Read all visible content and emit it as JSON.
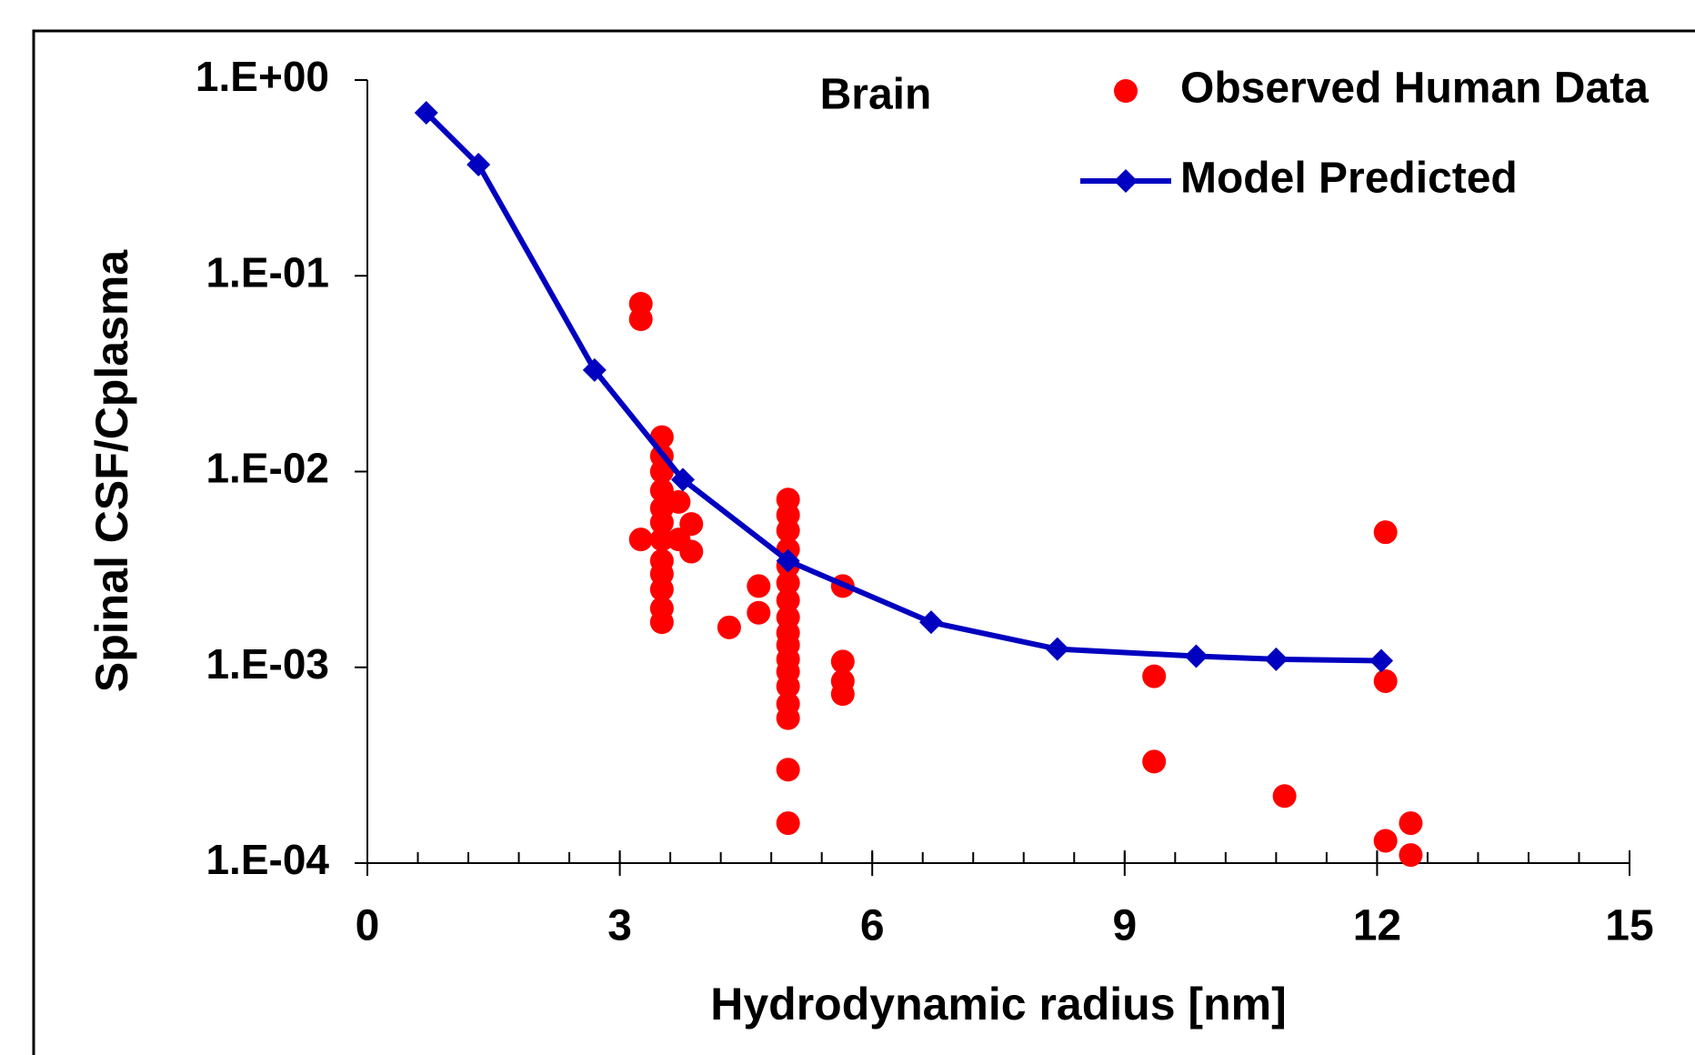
{
  "chart_data": {
    "type": "scatter",
    "title": "Brain",
    "xlabel": "Hydrodynamic  radius [nm]",
    "ylabel": "Spinal CSF/Cplasma",
    "xlim": [
      0,
      15
    ],
    "xticks": [
      0,
      3,
      6,
      9,
      12,
      15
    ],
    "ylim": [
      0.0001,
      1
    ],
    "yscale": "log",
    "yticks": [
      {
        "value": 1,
        "label": "1.E+00"
      },
      {
        "value": 0.1,
        "label": "1.E-01"
      },
      {
        "value": 0.01,
        "label": "1.E-02"
      },
      {
        "value": 0.001,
        "label": "1.E-03"
      },
      {
        "value": 0.0001,
        "label": "1.E-04"
      }
    ],
    "grid": false,
    "legend": "upper right",
    "series": [
      {
        "name": "Observed Human Data",
        "type": "scatter",
        "color": "#ff0000",
        "x": [
          3.25,
          3.25,
          3.25,
          3.5,
          3.5,
          3.5,
          3.5,
          3.5,
          3.5,
          3.5,
          3.5,
          3.5,
          3.5,
          3.5,
          3.5,
          3.7,
          3.7,
          3.85,
          3.85,
          4.3,
          4.65,
          4.65,
          5.0,
          5.0,
          5.0,
          5.0,
          5.0,
          5.0,
          5.0,
          5.0,
          5.0,
          5.0,
          5.0,
          5.0,
          5.0,
          5.0,
          5.0,
          5.0,
          5.0,
          5.65,
          5.65,
          5.65,
          5.65,
          9.35,
          9.35,
          10.9,
          12.1,
          12.1,
          12.1,
          12.4,
          12.4
        ],
        "y": [
          0.072,
          0.06,
          0.0045,
          0.015,
          0.012,
          0.01,
          0.008,
          0.0065,
          0.0055,
          0.0045,
          0.0035,
          0.003,
          0.0025,
          0.002,
          0.0017,
          0.007,
          0.0045,
          0.0054,
          0.0039,
          0.0016,
          0.0026,
          0.0019,
          0.0072,
          0.006,
          0.005,
          0.004,
          0.0033,
          0.0027,
          0.0022,
          0.0018,
          0.0015,
          0.0013,
          0.0011,
          0.00095,
          0.0008,
          0.00065,
          0.00055,
          0.0003,
          0.00016,
          0.0026,
          0.00107,
          0.00085,
          0.00073,
          0.0009,
          0.00033,
          0.00022,
          0.0049,
          0.00085,
          0.00013,
          0.00016,
          0.00011
        ]
      },
      {
        "name": "Model Predicted",
        "type": "line",
        "color": "#0000c0",
        "x": [
          0.7,
          1.32,
          2.7,
          3.75,
          5.0,
          6.7,
          8.2,
          9.85,
          10.8,
          12.05
        ],
        "y": [
          0.68,
          0.37,
          0.033,
          0.0091,
          0.0035,
          0.0017,
          0.00124,
          0.00114,
          0.0011,
          0.00108
        ]
      }
    ]
  }
}
